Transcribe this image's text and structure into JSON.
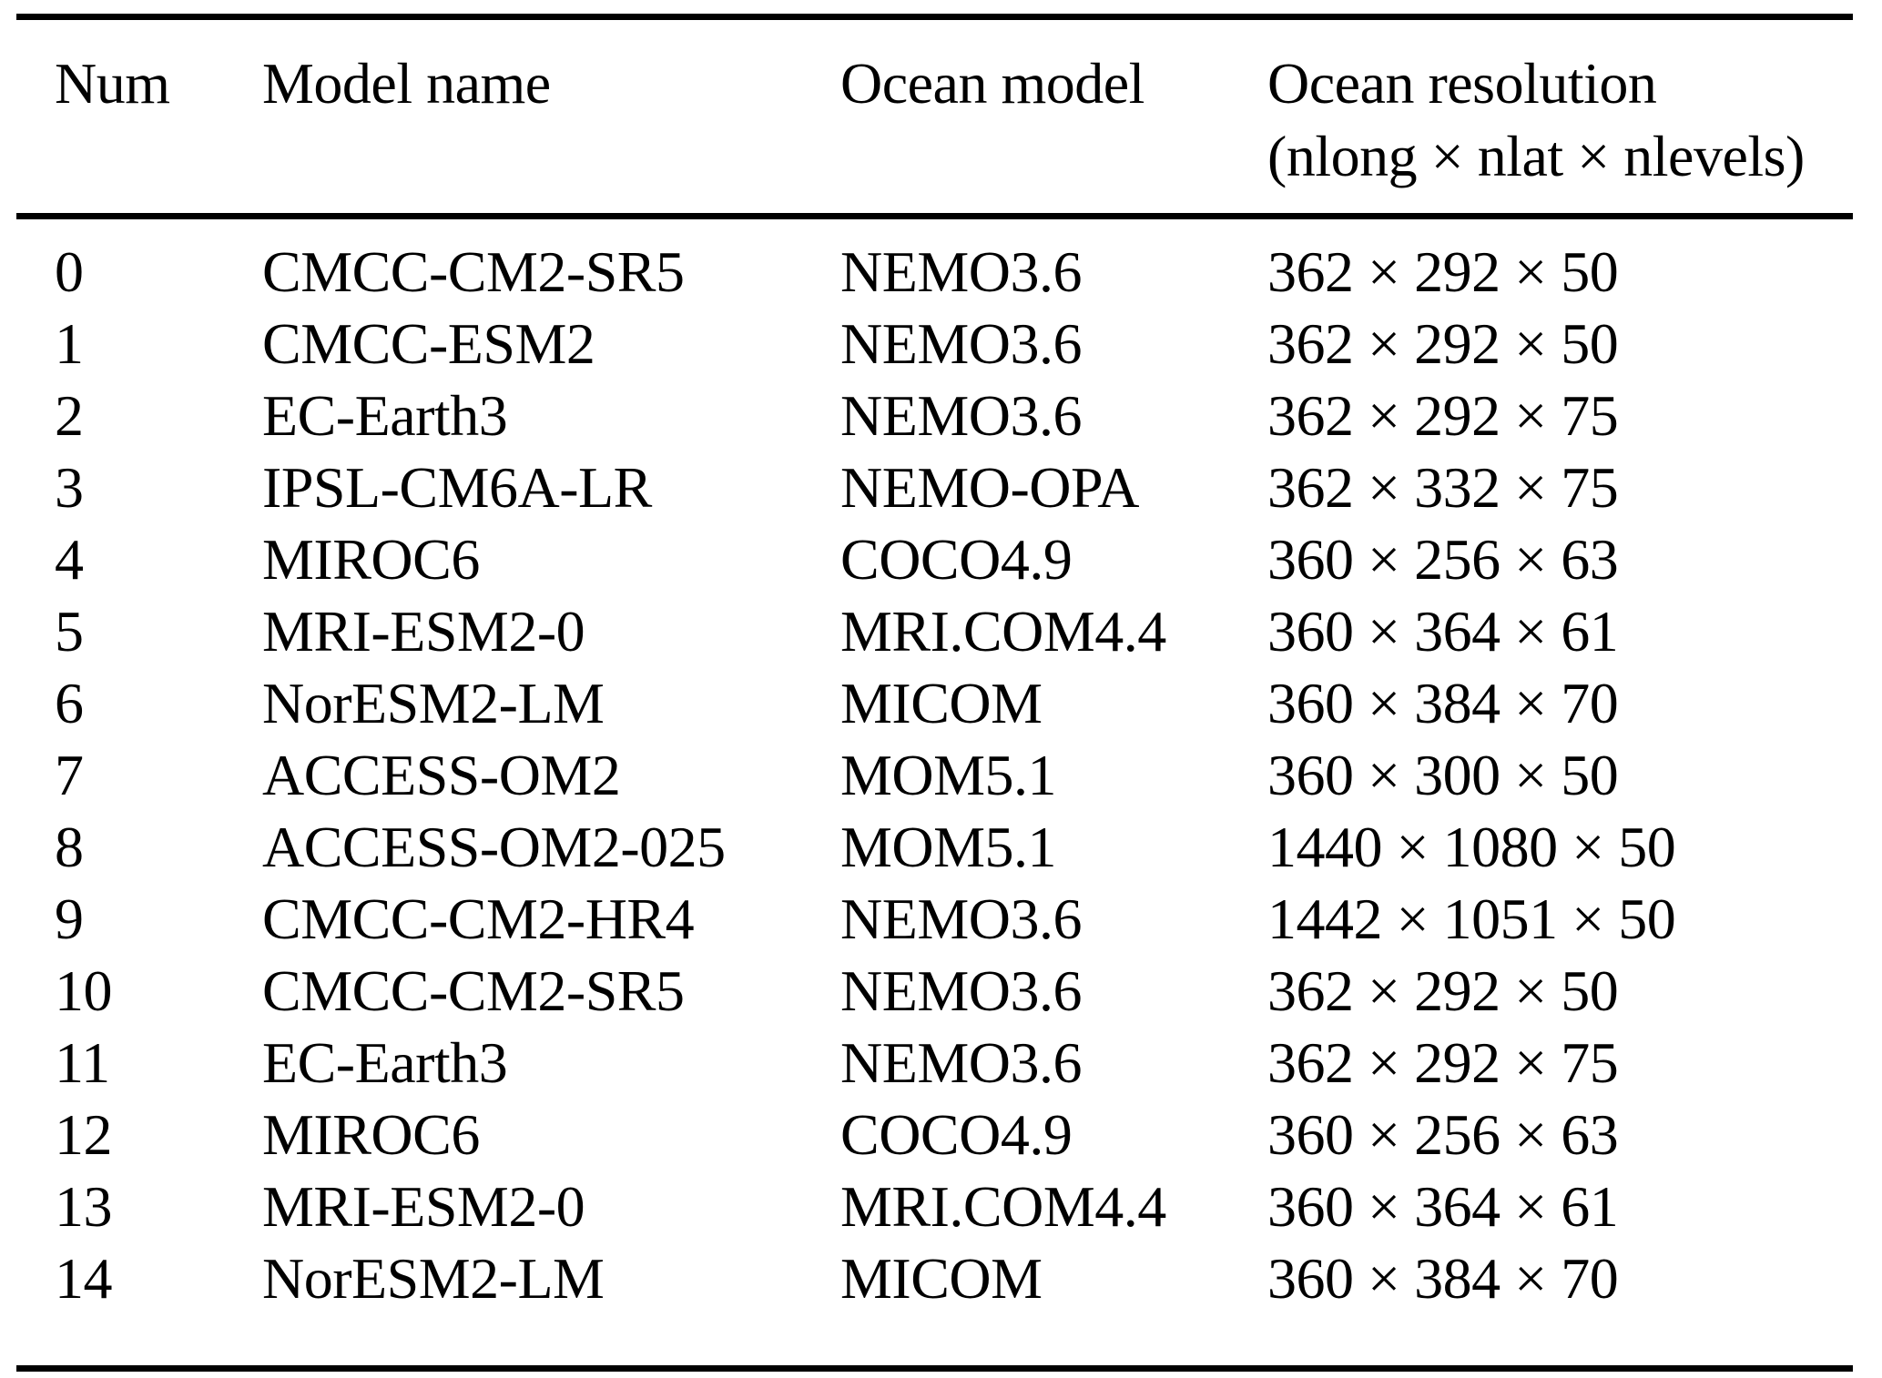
{
  "table": {
    "header": {
      "num": "Num",
      "model_name": "Model name",
      "ocean_model": "Ocean model",
      "ocean_resolution_line1": "Ocean resolution",
      "ocean_resolution_line2": "(nlong × nlat × nlevels)"
    },
    "rows": [
      {
        "num": "0",
        "model_name": "CMCC-CM2-SR5",
        "ocean_model": "NEMO3.6",
        "ocean_resolution": "362 × 292 × 50"
      },
      {
        "num": "1",
        "model_name": "CMCC-ESM2",
        "ocean_model": "NEMO3.6",
        "ocean_resolution": "362 × 292 × 50"
      },
      {
        "num": "2",
        "model_name": "EC-Earth3",
        "ocean_model": "NEMO3.6",
        "ocean_resolution": "362 × 292 × 75"
      },
      {
        "num": "3",
        "model_name": "IPSL-CM6A-LR",
        "ocean_model": "NEMO-OPA",
        "ocean_resolution": "362 × 332 × 75"
      },
      {
        "num": "4",
        "model_name": "MIROC6",
        "ocean_model": "COCO4.9",
        "ocean_resolution": "360 × 256 × 63"
      },
      {
        "num": "5",
        "model_name": "MRI-ESM2-0",
        "ocean_model": "MRI.COM4.4",
        "ocean_resolution": "360 × 364 × 61"
      },
      {
        "num": "6",
        "model_name": "NorESM2-LM",
        "ocean_model": "MICOM",
        "ocean_resolution": "360 × 384 × 70"
      },
      {
        "num": "7",
        "model_name": "ACCESS-OM2",
        "ocean_model": "MOM5.1",
        "ocean_resolution": "360 × 300 × 50"
      },
      {
        "num": "8",
        "model_name": "ACCESS-OM2-025",
        "ocean_model": "MOM5.1",
        "ocean_resolution": "1440 × 1080 × 50"
      },
      {
        "num": "9",
        "model_name": "CMCC-CM2-HR4",
        "ocean_model": "NEMO3.6",
        "ocean_resolution": "1442 × 1051 × 50"
      },
      {
        "num": "10",
        "model_name": "CMCC-CM2-SR5",
        "ocean_model": "NEMO3.6",
        "ocean_resolution": "362 × 292 × 50"
      },
      {
        "num": "11",
        "model_name": "EC-Earth3",
        "ocean_model": "NEMO3.6",
        "ocean_resolution": "362 × 292 × 75"
      },
      {
        "num": "12",
        "model_name": "MIROC6",
        "ocean_model": "COCO4.9",
        "ocean_resolution": "360 × 256 × 63"
      },
      {
        "num": "13",
        "model_name": "MRI-ESM2-0",
        "ocean_model": "MRI.COM4.4",
        "ocean_resolution": "360 × 364 × 61"
      },
      {
        "num": "14",
        "model_name": "NorESM2-LM",
        "ocean_model": "MICOM",
        "ocean_resolution": "360 × 384 × 70"
      }
    ]
  },
  "colors": {
    "text": "#000000",
    "background": "#ffffff",
    "rule": "#000000"
  }
}
